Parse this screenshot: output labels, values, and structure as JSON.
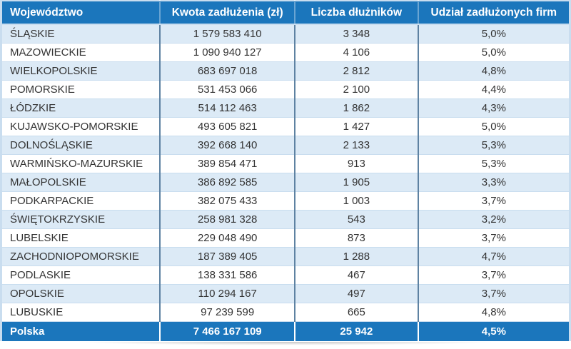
{
  "table": {
    "columns": [
      "Województwo",
      "Kwota zadłużenia (zł)",
      "Liczba dłużników",
      "Udział zadłużonych firm"
    ],
    "rows": [
      {
        "name": "ŚLĄSKIE",
        "amount": "1 579 583 410",
        "debtors": "3 348",
        "share": "5,0%"
      },
      {
        "name": "MAZOWIECKIE",
        "amount": "1 090 940 127",
        "debtors": "4 106",
        "share": "5,0%"
      },
      {
        "name": "WIELKOPOLSKIE",
        "amount": "683 697 018",
        "debtors": "2 812",
        "share": "4,8%"
      },
      {
        "name": "POMORSKIE",
        "amount": "531 453 066",
        "debtors": "2 100",
        "share": "4,4%"
      },
      {
        "name": "ŁÓDZKIE",
        "amount": "514 112 463",
        "debtors": "1 862",
        "share": "4,3%"
      },
      {
        "name": "KUJAWSKO-POMORSKIE",
        "amount": "493 605 821",
        "debtors": "1 427",
        "share": "5,0%"
      },
      {
        "name": "DOLNOŚLĄSKIE",
        "amount": "392 668 140",
        "debtors": "2 133",
        "share": "5,3%"
      },
      {
        "name": "WARMIŃSKO-MAZURSKIE",
        "amount": "389 854 471",
        "debtors": "913",
        "share": "5,3%"
      },
      {
        "name": "MAŁOPOLSKIE",
        "amount": "386 892 585",
        "debtors": "1 905",
        "share": "3,3%"
      },
      {
        "name": "PODKARPACKIE",
        "amount": "382 075 433",
        "debtors": "1 003",
        "share": "3,7%"
      },
      {
        "name": "ŚWIĘTOKRZYSKIE",
        "amount": "258 981 328",
        "debtors": "543",
        "share": "3,2%"
      },
      {
        "name": "LUBELSKIE",
        "amount": "229 048 490",
        "debtors": "873",
        "share": "3,7%"
      },
      {
        "name": "ZACHODNIOPOMORSKIE",
        "amount": "187 389 405",
        "debtors": "1 288",
        "share": "4,7%"
      },
      {
        "name": "PODLASKIE",
        "amount": "138 331 586",
        "debtors": "467",
        "share": "3,7%"
      },
      {
        "name": "OPOLSKIE",
        "amount": "110 294 167",
        "debtors": "497",
        "share": "3,7%"
      },
      {
        "name": "LUBUSKIE",
        "amount": "97 239 599",
        "debtors": "665",
        "share": "4,8%"
      }
    ],
    "total": {
      "name": "Polska",
      "amount": "7 466 167 109",
      "debtors": "25 942",
      "share": "4,5%"
    }
  },
  "colors": {
    "header_bg": "#1b76bc",
    "total_bg": "#1b76bc",
    "alt_row_bg": "#dceaf6",
    "row_bg": "#ffffff",
    "outer_border": "#c9ddef",
    "column_border": "#5e82a2",
    "header_text": "#ffffff",
    "body_text": "#333333"
  },
  "chart_data": {
    "type": "table",
    "title": "",
    "columns": [
      "Województwo",
      "Kwota zadłużenia (zł)",
      "Liczba dłużników",
      "Udział zadłużonych firm"
    ],
    "rows": [
      {
        "wojewodztwo": "ŚLĄSKIE",
        "kwota_zadluzenia_zl": 1579583410,
        "liczba_dluznikow": 3348,
        "udzial_zadluzonych_firm_pct": 5.0
      },
      {
        "wojewodztwo": "MAZOWIECKIE",
        "kwota_zadluzenia_zl": 1090940127,
        "liczba_dluznikow": 4106,
        "udzial_zadluzonych_firm_pct": 5.0
      },
      {
        "wojewodztwo": "WIELKOPOLSKIE",
        "kwota_zadluzenia_zl": 683697018,
        "liczba_dluznikow": 2812,
        "udzial_zadluzonych_firm_pct": 4.8
      },
      {
        "wojewodztwo": "POMORSKIE",
        "kwota_zadluzenia_zl": 531453066,
        "liczba_dluznikow": 2100,
        "udzial_zadluzonych_firm_pct": 4.4
      },
      {
        "wojewodztwo": "ŁÓDZKIE",
        "kwota_zadluzenia_zl": 514112463,
        "liczba_dluznikow": 1862,
        "udzial_zadluzonych_firm_pct": 4.3
      },
      {
        "wojewodztwo": "KUJAWSKO-POMORSKIE",
        "kwota_zadluzenia_zl": 493605821,
        "liczba_dluznikow": 1427,
        "udzial_zadluzonych_firm_pct": 5.0
      },
      {
        "wojewodztwo": "DOLNOŚLĄSKIE",
        "kwota_zadluzenia_zl": 392668140,
        "liczba_dluznikow": 2133,
        "udzial_zadluzonych_firm_pct": 5.3
      },
      {
        "wojewodztwo": "WARMIŃSKO-MAZURSKIE",
        "kwota_zadluzenia_zl": 389854471,
        "liczba_dluznikow": 913,
        "udzial_zadluzonych_firm_pct": 5.3
      },
      {
        "wojewodztwo": "MAŁOPOLSKIE",
        "kwota_zadluzenia_zl": 386892585,
        "liczba_dluznikow": 1905,
        "udzial_zadluzonych_firm_pct": 3.3
      },
      {
        "wojewodztwo": "PODKARPACKIE",
        "kwota_zadluzenia_zl": 382075433,
        "liczba_dluznikow": 1003,
        "udzial_zadluzonych_firm_pct": 3.7
      },
      {
        "wojewodztwo": "ŚWIĘTOKRZYSKIE",
        "kwota_zadluzenia_zl": 258981328,
        "liczba_dluznikow": 543,
        "udzial_zadluzonych_firm_pct": 3.2
      },
      {
        "wojewodztwo": "LUBELSKIE",
        "kwota_zadluzenia_zl": 229048490,
        "liczba_dluznikow": 873,
        "udzial_zadluzonych_firm_pct": 3.7
      },
      {
        "wojewodztwo": "ZACHODNIOPOMORSKIE",
        "kwota_zadluzenia_zl": 187389405,
        "liczba_dluznikow": 1288,
        "udzial_zadluzonych_firm_pct": 4.7
      },
      {
        "wojewodztwo": "PODLASKIE",
        "kwota_zadluzenia_zl": 138331586,
        "liczba_dluznikow": 467,
        "udzial_zadluzonych_firm_pct": 3.7
      },
      {
        "wojewodztwo": "OPOLSKIE",
        "kwota_zadluzenia_zl": 110294167,
        "liczba_dluznikow": 497,
        "udzial_zadluzonych_firm_pct": 3.7
      },
      {
        "wojewodztwo": "LUBUSKIE",
        "kwota_zadluzenia_zl": 97239599,
        "liczba_dluznikow": 665,
        "udzial_zadluzonych_firm_pct": 4.8
      }
    ],
    "total_row": {
      "wojewodztwo": "Polska",
      "kwota_zadluzenia_zl": 7466167109,
      "liczba_dluznikow": 25942,
      "udzial_zadluzonych_firm_pct": 4.5
    }
  }
}
